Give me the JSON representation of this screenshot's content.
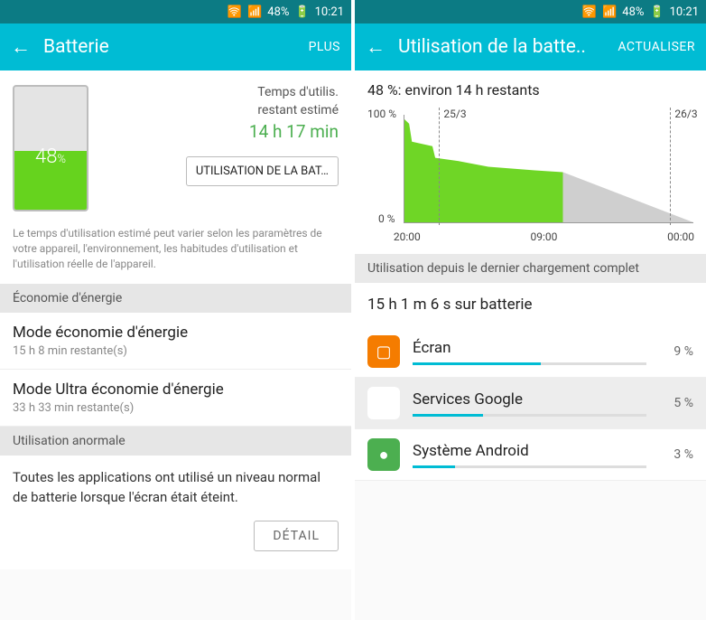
{
  "status": {
    "battery": "48%",
    "time": "10:21"
  },
  "s1": {
    "title": "Batterie",
    "action": "PLUS",
    "pct": "48",
    "pct_suffix": "%",
    "est_label1": "Temps d'utilis.",
    "est_label2": "restant estimé",
    "est_time": "14 h 17 min",
    "usage_btn": "UTILISATION DE LA BAT…",
    "note": "Le temps d'utilisation estimé peut varier selon les paramètres de votre appareil, l'environnement, les habitudes d'utilisation et l'utilisation réelle de l'appareil.",
    "econ_hdr": "Économie d'énergie",
    "mode1_t": "Mode économie d'énergie",
    "mode1_s": "15 h 8 min restante(s)",
    "mode2_t": "Mode Ultra économie d'énergie",
    "mode2_s": "33 h 33 min restante(s)",
    "anom_hdr": "Utilisation anormale",
    "anom_txt": "Toutes les applications ont utilisé un niveau normal de batterie lorsque l'écran était éteint.",
    "detail_btn": "DÉTAIL",
    "fill_pct": 48
  },
  "s2": {
    "title": "Utilisation de la batte..",
    "action": "ACTUALISER",
    "summary": "48 %: environ 14 h restants",
    "y100": "100 %",
    "y0": "0 %",
    "d1": "25/3",
    "d2": "26/3",
    "x1": "20:00",
    "x2": "09:00",
    "x3": "00:00",
    "chart": {
      "colors": {
        "fill": "#6fd626",
        "pred": "#cfcfcf",
        "axis": "#999"
      },
      "actual_poly": "0,5 5,10 8,30 30,35 33,48 60,52 90,58 140,62 170,64 170,120 0,120",
      "pred_poly": "170,64 310,120 170,120",
      "d1_left_pct": 12,
      "d2_left_pct": 92,
      "x1_left_pct": 8,
      "x2_left_pct": 50,
      "x3_left_pct": 92
    },
    "usage_hdr": "Utilisation depuis le dernier chargement complet",
    "on_bat": "15 h 1 m 6 s sur batterie",
    "apps": [
      {
        "name": "Écran",
        "pct": "9 %",
        "bar": 55,
        "bg": "#f57c00",
        "glyph": "▢"
      },
      {
        "name": "Services Google",
        "pct": "5 %",
        "bar": 30,
        "bg": "#fff",
        "glyph": "▶"
      },
      {
        "name": "Système Android",
        "pct": "3 %",
        "bar": 18,
        "bg": "#4caf50",
        "glyph": "●"
      }
    ]
  }
}
